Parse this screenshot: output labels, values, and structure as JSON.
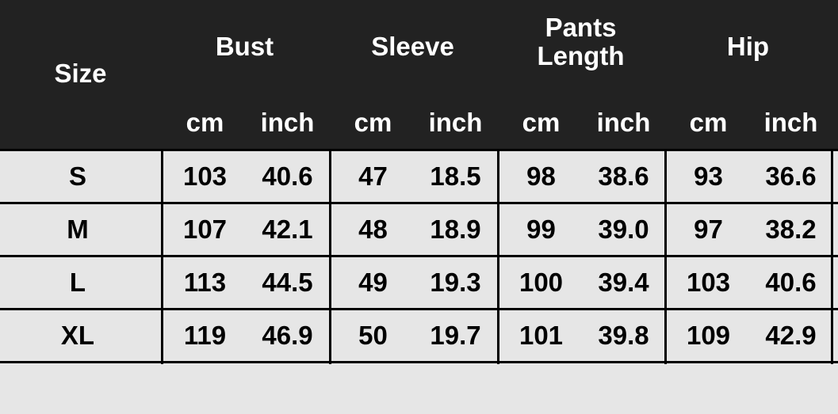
{
  "table": {
    "size_header": "Size",
    "groups": [
      {
        "title_lines": [
          "Bust"
        ],
        "units": [
          "cm",
          "inch"
        ]
      },
      {
        "title_lines": [
          "Sleeve"
        ],
        "units": [
          "cm",
          "inch"
        ]
      },
      {
        "title_lines": [
          "Pants",
          "Length"
        ],
        "units": [
          "cm",
          "inch"
        ]
      },
      {
        "title_lines": [
          "Hip"
        ],
        "units": [
          "cm",
          "inch"
        ]
      }
    ],
    "rows": [
      {
        "size": "S",
        "values": [
          "103",
          "40.6",
          "47",
          "18.5",
          "98",
          "38.6",
          "93",
          "36.6"
        ]
      },
      {
        "size": "M",
        "values": [
          "107",
          "42.1",
          "48",
          "18.9",
          "99",
          "39.0",
          "97",
          "38.2"
        ]
      },
      {
        "size": "L",
        "values": [
          "113",
          "44.5",
          "49",
          "19.3",
          "100",
          "39.4",
          "103",
          "40.6"
        ]
      },
      {
        "size": "XL",
        "values": [
          "119",
          "46.9",
          "50",
          "19.7",
          "101",
          "39.8",
          "109",
          "42.9"
        ]
      }
    ]
  },
  "colors": {
    "header_bg": "#222222",
    "row_bg": "#e6e6e6",
    "grid": "#000000"
  }
}
